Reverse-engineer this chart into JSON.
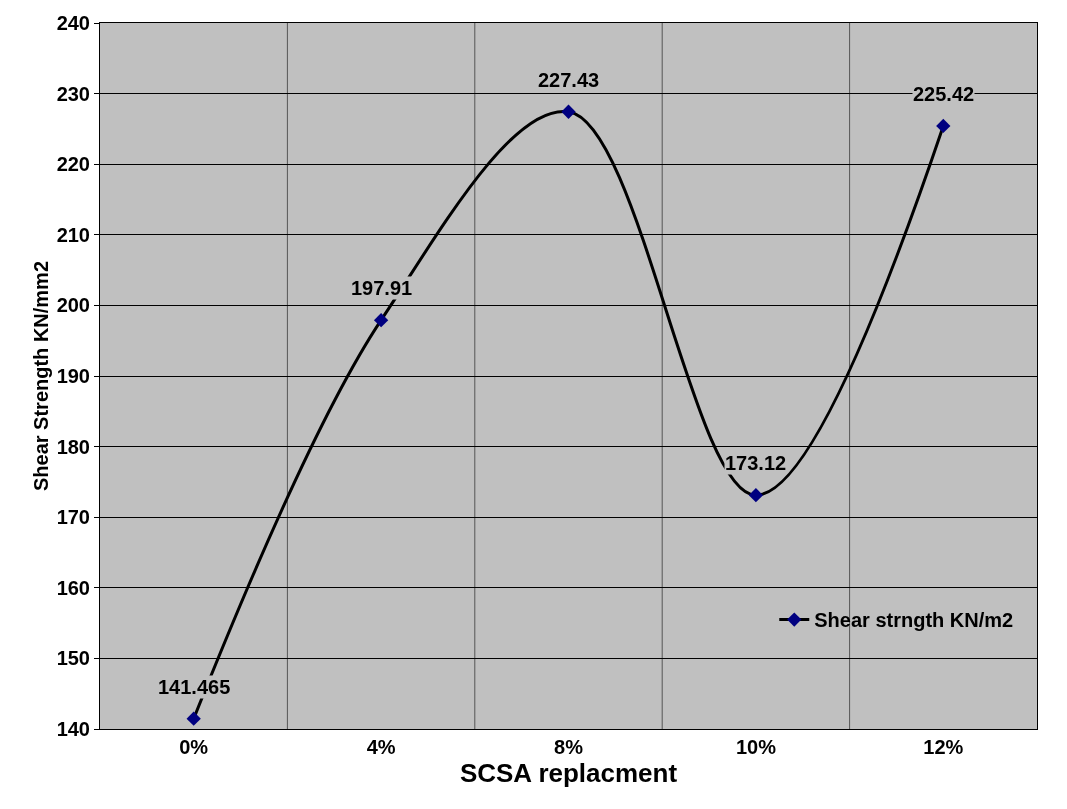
{
  "chart_data": {
    "type": "line",
    "xlabel": "SCSA replacment",
    "ylabel": "Shear Strength KN/mm2",
    "categories": [
      "0%",
      "4%",
      "8%",
      "10%",
      "12%"
    ],
    "series": [
      {
        "name": "Shear strngth KN/m2",
        "color": "#000000",
        "colors": [
          "#000080",
          "#000080",
          "#000080",
          "#000080",
          "#000080"
        ],
        "values": [
          141.465,
          197.91,
          227.43,
          173.12,
          225.42
        ]
      }
    ],
    "ylim": [
      140,
      240
    ],
    "yticks": [
      140,
      150,
      160,
      170,
      180,
      190,
      200,
      210,
      220,
      230,
      240
    ],
    "grid": true,
    "legend": "right",
    "marker": "diamond",
    "line_style": "solid",
    "data_labels": true
  }
}
